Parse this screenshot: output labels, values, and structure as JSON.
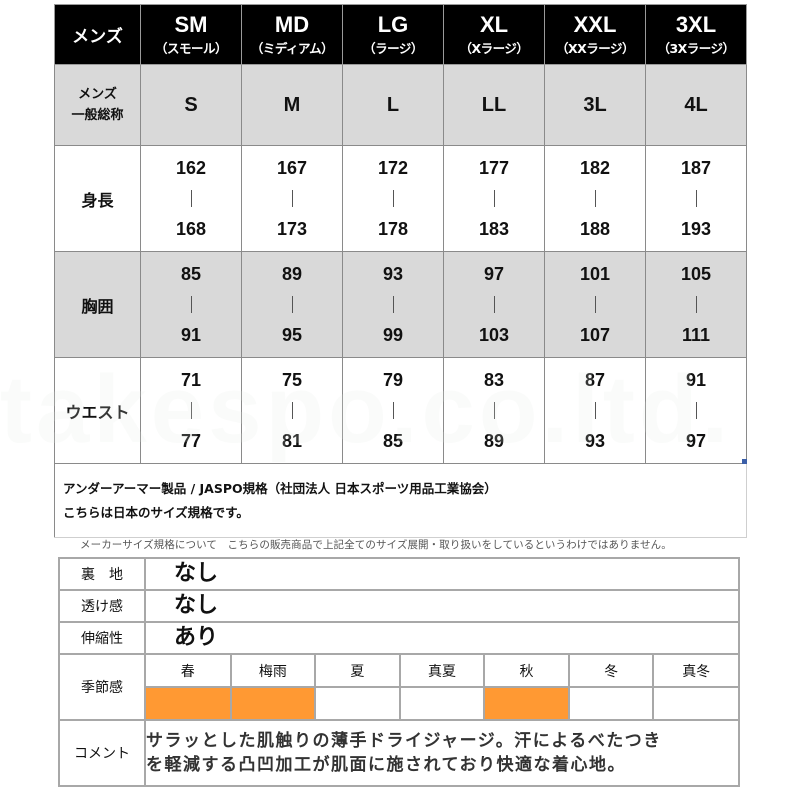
{
  "size_table": {
    "corner_label": "メンズ",
    "sizes": [
      {
        "code": "SM",
        "name": "（スモール）"
      },
      {
        "code": "MD",
        "name": "（ミディアム）"
      },
      {
        "code": "LG",
        "name": "（ラージ）"
      },
      {
        "code": "XL",
        "name": "（Xラージ）"
      },
      {
        "code": "XXL",
        "name": "（XXラージ）"
      },
      {
        "code": "3XL",
        "name": "（3Xラージ）"
      }
    ],
    "general_row": {
      "label_line1": "メンズ",
      "label_line2": "一般総称",
      "values": [
        "S",
        "M",
        "L",
        "LL",
        "3L",
        "4L"
      ]
    },
    "rows": [
      {
        "label": "身長",
        "ranges": [
          [
            "162",
            "168"
          ],
          [
            "167",
            "173"
          ],
          [
            "172",
            "178"
          ],
          [
            "177",
            "183"
          ],
          [
            "182",
            "188"
          ],
          [
            "187",
            "193"
          ]
        ]
      },
      {
        "label": "胸囲",
        "ranges": [
          [
            "85",
            "91"
          ],
          [
            "89",
            "95"
          ],
          [
            "93",
            "99"
          ],
          [
            "97",
            "103"
          ],
          [
            "101",
            "107"
          ],
          [
            "105",
            "111"
          ]
        ]
      },
      {
        "label": "ウエスト",
        "ranges": [
          [
            "71",
            "77"
          ],
          [
            "75",
            "81"
          ],
          [
            "79",
            "85"
          ],
          [
            "83",
            "89"
          ],
          [
            "87",
            "93"
          ],
          [
            "91",
            "97"
          ]
        ]
      }
    ],
    "range_separator": "|",
    "notes": {
      "line1": "アンダーアーマー製品 / JASPO規格（社団法人 日本スポーツ用品工業協会）",
      "line2": "こちらは日本のサイズ規格です。"
    }
  },
  "caption": "メーカーサイズ規格について　こちらの販売商品で上記全てのサイズ展開・取り扱いをしているというわけではありません。",
  "spec_table": {
    "attributes": [
      {
        "label": "裏　地",
        "value": "なし"
      },
      {
        "label": "透け感",
        "value": "なし"
      },
      {
        "label": "伸縮性",
        "value": "あり"
      }
    ],
    "season": {
      "label": "季節感",
      "seasons": [
        {
          "name": "春",
          "active": true
        },
        {
          "name": "梅雨",
          "active": true
        },
        {
          "name": "夏",
          "active": false
        },
        {
          "name": "真夏",
          "active": false
        },
        {
          "name": "秋",
          "active": true
        },
        {
          "name": "冬",
          "active": false
        },
        {
          "name": "真冬",
          "active": false
        }
      ],
      "active_color": "#ff9933"
    },
    "comment": {
      "label": "コメント",
      "line1": "サラッとした肌触りの薄手ドライジャージ。汗によるべたつき",
      "line2": "を軽減する凸凹加工が肌面に施されており快適な着心地。"
    }
  },
  "watermark": "takespo.co.ltd."
}
